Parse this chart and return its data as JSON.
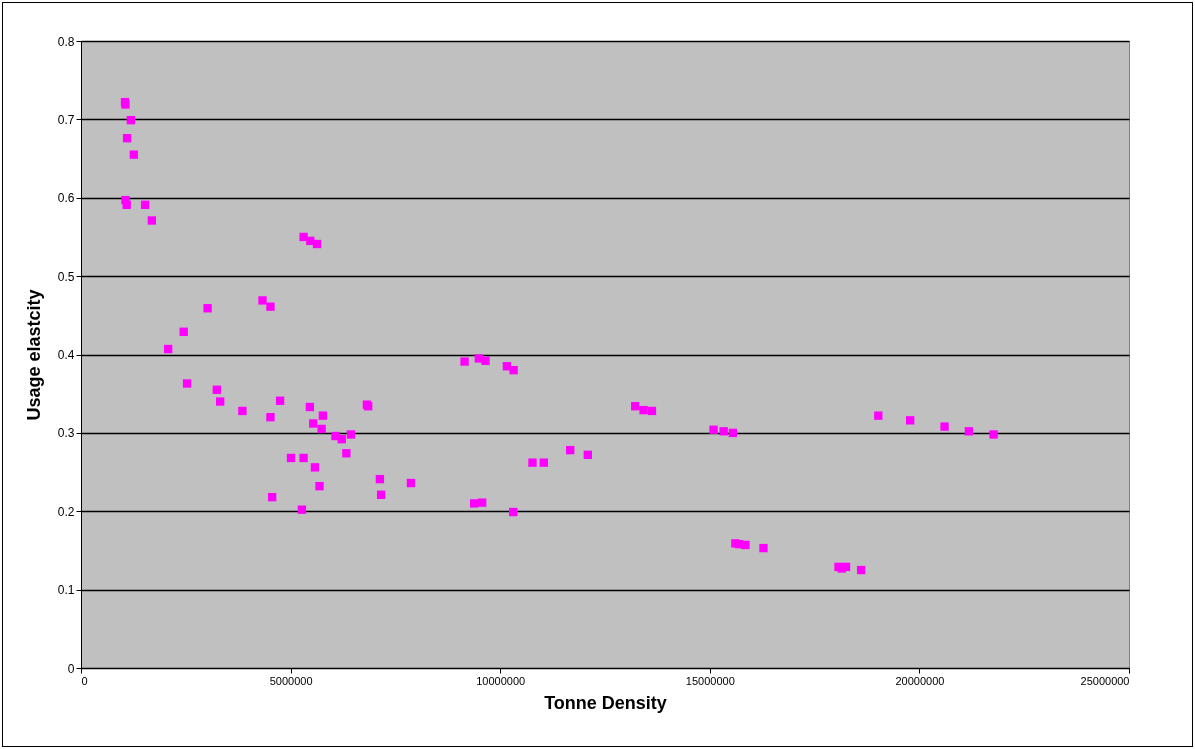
{
  "chart_data": {
    "type": "scatter",
    "xlabel": "Tonne Density",
    "ylabel": "Usage elastcity",
    "marker": "square",
    "grid": "y",
    "legend": false,
    "xlim": [
      0,
      25000000
    ],
    "xticks": [
      0,
      5000000,
      10000000,
      15000000,
      20000000,
      25000000
    ],
    "ylim": [
      0,
      0.8
    ],
    "yticks": [
      0,
      0.1,
      0.2,
      0.3,
      0.4,
      0.5,
      0.6,
      0.7,
      0.8
    ],
    "series": [
      {
        "color": "#ff00ff",
        "x": [
          1050000,
          1060000,
          1190000,
          1100000,
          1260000,
          1060000,
          1090000,
          1530000,
          1690000,
          5310000,
          5470000,
          5630000,
          3020000,
          4330000,
          4520000,
          2450000,
          2080000,
          2530000,
          3240000,
          3320000,
          3850000,
          4750000,
          4520000,
          5460000,
          5770000,
          5540000,
          5740000,
          6070000,
          6220000,
          6440000,
          6820000,
          6850000,
          6330000,
          5010000,
          5310000,
          5580000,
          5690000,
          4560000,
          5270000,
          7130000,
          7160000,
          7870000,
          9150000,
          9490000,
          9650000,
          10160000,
          10320000,
          13220000,
          13420000,
          13620000,
          15090000,
          15330000,
          15550000,
          10770000,
          11040000,
          11670000,
          12090000,
          9380000,
          9570000,
          10310000,
          19020000,
          19780000,
          20600000,
          21180000,
          21770000,
          15610000,
          15700000,
          15850000,
          16280000,
          18070000,
          18150000,
          18250000,
          18610000
        ],
        "values": [
          0.722,
          0.719,
          0.699,
          0.676,
          0.655,
          0.597,
          0.591,
          0.591,
          0.571,
          0.55,
          0.545,
          0.541,
          0.459,
          0.469,
          0.461,
          0.429,
          0.407,
          0.363,
          0.355,
          0.34,
          0.328,
          0.341,
          0.32,
          0.333,
          0.322,
          0.312,
          0.305,
          0.296,
          0.292,
          0.298,
          0.336,
          0.334,
          0.274,
          0.268,
          0.268,
          0.256,
          0.232,
          0.218,
          0.202,
          0.241,
          0.221,
          0.236,
          0.391,
          0.395,
          0.392,
          0.385,
          0.38,
          0.334,
          0.329,
          0.328,
          0.304,
          0.302,
          0.3,
          0.262,
          0.262,
          0.278,
          0.272,
          0.21,
          0.211,
          0.199,
          0.322,
          0.316,
          0.308,
          0.302,
          0.298,
          0.159,
          0.158,
          0.157,
          0.153,
          0.129,
          0.127,
          0.129,
          0.125
        ]
      }
    ]
  }
}
